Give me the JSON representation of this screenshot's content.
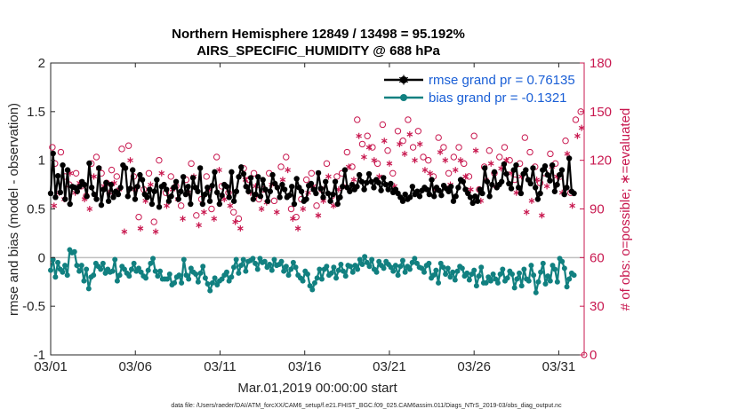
{
  "chart_data": {
    "type": "line",
    "title_line1": "Northern Hemisphere 12849 / 13498 = 95.192%",
    "title_line2": "AIRS_SPECIFIC_HUMIDITY @ 688 hPa",
    "ylabel_left": "rmse and bias (model - observation)",
    "ylabel_right": "# of obs: o=possible; ∗=evaluated",
    "xlabel": "Mar.01,2019 00:00:00 start",
    "footnote": "data file: /Users/raeder/DAI/ATM_forcXX/CAM6_setup/f.e21.FHIST_BGC.f09_025.CAM6assim.011/Diags_NTrS_2019-03/obs_diag_output.nc",
    "x_range_days": [
      0,
      31.5
    ],
    "ylim_left": [
      -1,
      2
    ],
    "ylim_right": [
      0,
      180
    ],
    "x_tick_days": [
      0,
      5,
      10,
      15,
      20,
      25,
      30
    ],
    "x_tick_labels": [
      "03/01",
      "03/06",
      "03/11",
      "03/16",
      "03/21",
      "03/26",
      "03/31"
    ],
    "y_left_ticks": [
      -1,
      -0.5,
      0,
      0.5,
      1,
      1.5,
      2
    ],
    "y_left_tick_labels": [
      "-1",
      "-0.5",
      "0",
      "0.5",
      "1",
      "1.5",
      "2"
    ],
    "y_right_ticks": [
      0,
      30,
      60,
      90,
      120,
      150,
      180
    ],
    "y_right_tick_labels": [
      "0",
      "30",
      "60",
      "90",
      "120",
      "150",
      "180"
    ],
    "colors": {
      "rmse": "#000000",
      "bias": "#118080",
      "obs": "#c8184f",
      "zero_line": "#bfbfbf",
      "legend_text": "#1a5fd6"
    },
    "series": [
      {
        "name": "rmse grand pr = 0.76135",
        "values": [
          0.66,
          1.07,
          0.62,
          0.84,
          0.67,
          0.95,
          0.6,
          0.9,
          0.55,
          0.73,
          0.72,
          0.68,
          0.73,
          0.78,
          0.75,
          0.63,
          0.97,
          0.72,
          0.65,
          0.6,
          0.92,
          0.54,
          0.7,
          0.77,
          0.58,
          0.75,
          0.62,
          0.68,
          0.65,
          0.72,
          0.95,
          0.92,
          0.63,
          0.71,
          0.9,
          0.6,
          0.73,
          0.85,
          0.8,
          0.65,
          0.62,
          0.7,
          0.55,
          0.68,
          0.8,
          0.52,
          0.73,
          0.75,
          0.7,
          0.58,
          0.63,
          0.72,
          0.78,
          0.6,
          0.68,
          0.83,
          0.65,
          0.73,
          0.55,
          0.82,
          0.72,
          0.68,
          0.92,
          0.55,
          0.65,
          0.72,
          0.58,
          0.74,
          0.88,
          0.67,
          0.55,
          0.64,
          0.75,
          0.73,
          0.62,
          0.88,
          0.58,
          0.68,
          0.83,
          0.93,
          0.86,
          0.73,
          0.68,
          0.82,
          0.6,
          0.65,
          0.83,
          0.63,
          0.8,
          0.7,
          0.58,
          0.68,
          0.85,
          0.76,
          0.72,
          0.62,
          0.75,
          0.7,
          0.62,
          0.64,
          0.73,
          0.55,
          0.81,
          0.72,
          0.68,
          0.58,
          0.6,
          0.74,
          0.76,
          0.7,
          0.66,
          0.87,
          0.71,
          0.62,
          0.78,
          0.66,
          0.58,
          0.65,
          0.78,
          0.55,
          0.62,
          0.73,
          0.9,
          0.72,
          0.68,
          0.75,
          0.7,
          0.73,
          0.85,
          0.78,
          0.7,
          0.77,
          0.86,
          0.78,
          0.72,
          0.8,
          0.77,
          0.69,
          0.82,
          0.75,
          0.7,
          0.76,
          0.67,
          0.7,
          0.66,
          0.62,
          0.58,
          0.65,
          0.6,
          0.62,
          0.73,
          0.65,
          0.68,
          0.63,
          0.69,
          0.72,
          0.7,
          0.65,
          0.8,
          0.63,
          0.72,
          0.69,
          0.64,
          0.74,
          0.71,
          0.68,
          0.73,
          0.58,
          0.63,
          0.72,
          0.8,
          0.78,
          0.7,
          0.66,
          0.62,
          0.56,
          0.63,
          0.58,
          0.7,
          0.66,
          0.92,
          0.78,
          0.63,
          0.75,
          0.88,
          0.72,
          0.75,
          0.78,
          0.96,
          0.86,
          0.76,
          0.71,
          0.9,
          0.95,
          0.72,
          0.66,
          0.86,
          0.9,
          0.8,
          0.76,
          0.92,
          0.72,
          0.6,
          0.66,
          0.9,
          0.94,
          0.85,
          0.79,
          0.95,
          0.68,
          0.75,
          0.85,
          0.9,
          0.65,
          0.72,
          1.02,
          0.68,
          0.66
        ]
      },
      {
        "name": "bias grand pr = -0.1321",
        "values": [
          -0.13,
          -0.02,
          -0.2,
          -0.05,
          -0.12,
          -0.15,
          -0.08,
          -0.18,
          0.08,
          0.05,
          0.06,
          -0.08,
          -0.14,
          -0.08,
          -0.24,
          -0.12,
          -0.32,
          -0.2,
          -0.18,
          -0.06,
          -0.09,
          -0.12,
          -0.06,
          -0.16,
          -0.12,
          -0.15,
          -0.14,
          -0.02,
          -0.24,
          -0.18,
          -0.09,
          -0.12,
          -0.16,
          -0.19,
          -0.12,
          -0.06,
          -0.14,
          -0.11,
          -0.15,
          -0.19,
          -0.21,
          -0.13,
          -0.06,
          -0.01,
          -0.14,
          -0.19,
          -0.14,
          -0.22,
          -0.22,
          -0.22,
          -0.17,
          -0.28,
          -0.26,
          -0.2,
          -0.18,
          -0.26,
          -0.02,
          -0.18,
          -0.22,
          -0.11,
          -0.15,
          -0.17,
          -0.25,
          -0.16,
          -0.09,
          -0.21,
          -0.27,
          -0.34,
          -0.26,
          -0.21,
          -0.28,
          -0.24,
          -0.22,
          -0.18,
          -0.15,
          -0.24,
          -0.2,
          -0.1,
          -0.02,
          -0.16,
          -0.08,
          -0.02,
          -0.14,
          -0.04,
          -0.03,
          -0.01,
          -0.06,
          -0.12,
          -0.01,
          -0.05,
          -0.04,
          -0.1,
          -0.07,
          -0.13,
          -0.02,
          -0.08,
          -0.07,
          -0.04,
          -0.14,
          -0.09,
          -0.18,
          -0.12,
          -0.05,
          -0.1,
          -0.18,
          -0.21,
          -0.24,
          -0.14,
          -0.17,
          -0.29,
          -0.33,
          -0.26,
          -0.21,
          -0.12,
          -0.22,
          -0.12,
          -0.09,
          -0.18,
          -0.16,
          -0.1,
          -0.21,
          -0.13,
          -0.07,
          -0.14,
          -0.19,
          -0.08,
          -0.09,
          -0.15,
          -0.08,
          -0.12,
          -0.02,
          -0.07,
          0.01,
          -0.05,
          -0.09,
          -0.02,
          -0.12,
          -0.15,
          -0.04,
          -0.08,
          -0.11,
          -0.04,
          -0.07,
          -0.1,
          -0.14,
          -0.08,
          -0.18,
          -0.09,
          -0.03,
          -0.15,
          -0.09,
          -0.12,
          -0.05,
          -0.01,
          -0.06,
          -0.1,
          -0.11,
          -0.15,
          -0.08,
          -0.06,
          -0.21,
          -0.18,
          -0.13,
          -0.26,
          -0.06,
          -0.1,
          -0.17,
          -0.11,
          -0.2,
          -0.15,
          -0.23,
          -0.14,
          -0.09,
          -0.11,
          -0.19,
          -0.16,
          -0.23,
          -0.17,
          -0.13,
          -0.29,
          -0.19,
          -0.1,
          -0.26,
          -0.26,
          -0.2,
          -0.24,
          -0.17,
          -0.22,
          -0.26,
          -0.17,
          -0.12,
          -0.24,
          -0.21,
          -0.14,
          -0.17,
          -0.31,
          -0.22,
          -0.16,
          -0.29,
          -0.12,
          -0.22,
          -0.24,
          -0.08,
          -0.18,
          -0.36,
          -0.25,
          -0.15,
          -0.06,
          -0.27,
          -0.19,
          -0.24,
          -0.08,
          -0.12,
          -0.25,
          -0.01,
          -0.04,
          -0.11,
          -0.3,
          -0.22,
          -0.16,
          -0.18
        ]
      }
    ],
    "obs_possible_days": [
      0.1,
      0.25,
      0.6,
      0.85,
      1.1,
      1.5,
      1.8,
      2.1,
      2.4,
      2.7,
      3.0,
      3.3,
      3.6,
      3.9,
      4.2,
      4.6,
      4.9,
      5.2,
      5.5,
      5.8,
      6.1,
      6.4,
      6.8,
      7.1,
      7.4,
      7.7,
      8.0,
      8.3,
      8.6,
      8.9,
      9.2,
      9.5,
      9.8,
      10.1,
      10.5,
      10.8,
      11.1,
      11.4,
      11.7,
      12.0,
      12.3,
      12.6,
      12.9,
      13.2,
      13.6,
      13.9,
      14.2,
      14.5,
      14.8,
      15.1,
      15.4,
      15.7,
      16.0,
      16.3,
      16.6,
      16.9,
      17.2,
      17.5,
      17.8,
      18.1,
      18.4,
      18.7,
      19.0,
      19.3,
      19.6,
      19.9,
      20.2,
      20.5,
      20.8,
      21.1,
      21.4,
      21.7,
      22.0,
      22.3,
      22.6,
      22.9,
      23.2,
      23.5,
      23.8,
      24.1,
      24.4,
      24.7,
      25.0,
      25.3,
      25.6,
      25.9,
      26.2,
      26.5,
      26.8,
      27.1,
      27.4,
      27.7,
      28.0,
      28.3,
      28.6,
      28.9,
      29.2,
      29.5,
      29.8,
      30.1,
      30.4,
      30.7,
      31.0,
      31.3
    ],
    "obs_possible": [
      128,
      118,
      125,
      110,
      105,
      112,
      104,
      98,
      118,
      122,
      112,
      106,
      114,
      110,
      127,
      129,
      110,
      85,
      102,
      112,
      82,
      120,
      100,
      110,
      104,
      92,
      108,
      118,
      86,
      96,
      110,
      90,
      122,
      104,
      100,
      88,
      84,
      115,
      108,
      112,
      96,
      102,
      112,
      95,
      116,
      122,
      90,
      85,
      96,
      108,
      112,
      92,
      102,
      118,
      98,
      110,
      112,
      125,
      116,
      145,
      130,
      135,
      128,
      118,
      142,
      126,
      112,
      138,
      132,
      145,
      128,
      138,
      122,
      120,
      110,
      134,
      128,
      112,
      122,
      128,
      118,
      110,
      135,
      102,
      116,
      126,
      112,
      122,
      128,
      120,
      108,
      118,
      134,
      125,
      116,
      106,
      112,
      124,
      118,
      110,
      132,
      100,
      145,
      150
    ],
    "obs_evaluated_days": [
      0.2,
      0.5,
      0.8,
      1.15,
      1.45,
      1.7,
      2.0,
      2.3,
      2.55,
      2.85,
      3.15,
      3.45,
      3.75,
      4.05,
      4.35,
      4.7,
      5.0,
      5.3,
      5.6,
      5.9,
      6.2,
      6.55,
      6.85,
      7.2,
      7.5,
      7.8,
      8.1,
      8.45,
      8.75,
      9.05,
      9.35,
      9.65,
      9.95,
      10.25,
      10.6,
      10.9,
      11.2,
      11.5,
      11.8,
      12.1,
      12.45,
      12.75,
      13.05,
      13.35,
      13.7,
      14.0,
      14.3,
      14.6,
      14.9,
      15.2,
      15.5,
      15.8,
      16.1,
      16.4,
      16.7,
      17.0,
      17.3,
      17.6,
      17.9,
      18.2,
      18.5,
      18.8,
      19.1,
      19.4,
      19.7,
      20.0,
      20.3,
      20.6,
      20.9,
      21.2,
      21.5,
      21.8,
      22.1,
      22.4,
      22.7,
      23.0,
      23.3,
      23.6,
      23.9,
      24.2,
      24.5,
      24.8,
      25.1,
      25.4,
      25.7,
      26.0,
      26.3,
      26.6,
      26.9,
      27.2,
      27.5,
      27.8,
      28.1,
      28.4,
      28.7,
      29.0,
      29.3,
      29.6,
      29.9,
      30.2,
      30.5,
      30.8,
      31.1,
      31.35
    ],
    "obs_evaluated": [
      92,
      100,
      96,
      112,
      100,
      106,
      96,
      90,
      110,
      115,
      104,
      100,
      106,
      102,
      76,
      120,
      102,
      78,
      95,
      105,
      76,
      112,
      92,
      102,
      96,
      84,
      100,
      110,
      80,
      88,
      102,
      84,
      114,
      96,
      92,
      82,
      78,
      108,
      100,
      104,
      90,
      94,
      105,
      88,
      108,
      114,
      84,
      78,
      90,
      100,
      104,
      86,
      95,
      110,
      92,
      102,
      104,
      116,
      108,
      135,
      122,
      128,
      120,
      110,
      132,
      118,
      104,
      130,
      124,
      136,
      120,
      130,
      114,
      112,
      102,
      125,
      120,
      105,
      114,
      120,
      110,
      102,
      126,
      95,
      108,
      118,
      104,
      115,
      120,
      112,
      100,
      110,
      88,
      95,
      108,
      86,
      104,
      116,
      110,
      100,
      124,
      92,
      135,
      140
    ]
  }
}
